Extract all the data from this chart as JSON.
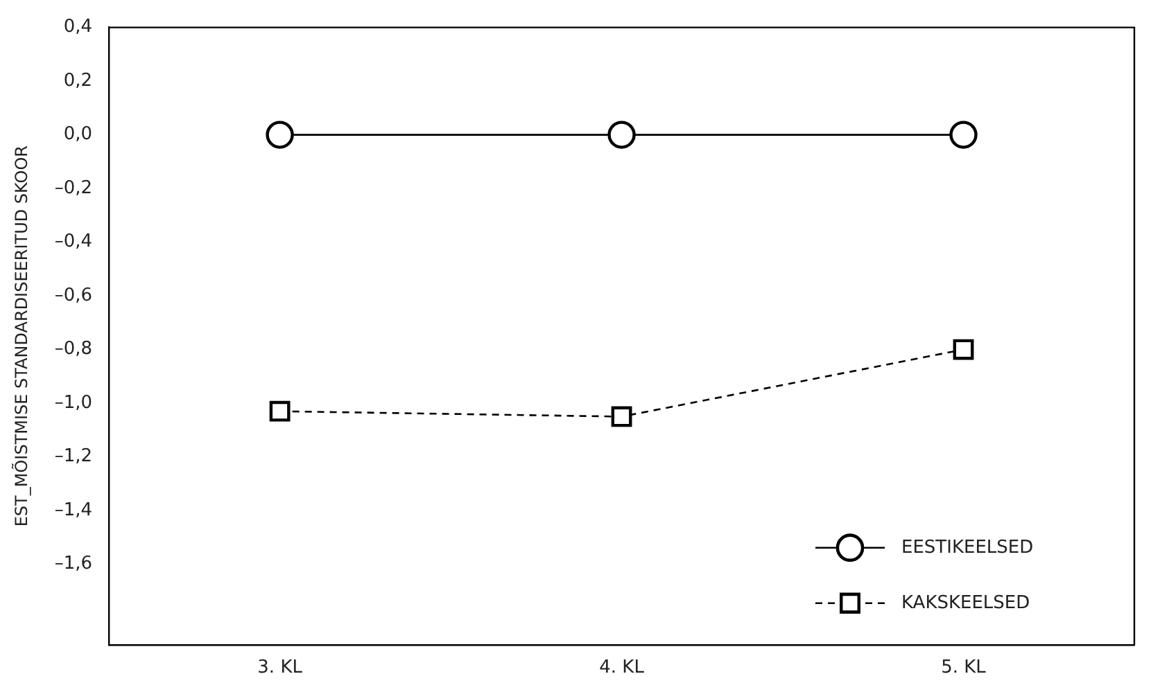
{
  "chart_data": {
    "type": "line",
    "ylabel": "EST_MÕISTMISE STANDARDISEERITUD SKOOR",
    "categories": [
      "3. KL",
      "4. KL",
      "5. KL"
    ],
    "series": [
      {
        "name": "EESTIKEELSED",
        "color": "#000000",
        "values": [
          0.0,
          0.0,
          0.0
        ],
        "marker": "circle",
        "line_style": "solid"
      },
      {
        "name": "KAKSKEELSED",
        "color": "#000000",
        "values": [
          -1.03,
          -1.05,
          -0.8
        ],
        "marker": "square",
        "line_style": "dashed"
      }
    ],
    "ylim": [
      -1.9,
      0.4
    ],
    "yticks": [
      {
        "value": 0.4,
        "label": "0,4"
      },
      {
        "value": 0.2,
        "label": "0,2"
      },
      {
        "value": 0,
        "label": "0,0"
      },
      {
        "value": -0.2,
        "label": "–0,2"
      },
      {
        "value": -0.4,
        "label": "–0,4"
      },
      {
        "value": -0.6,
        "label": "–0,6"
      },
      {
        "value": -0.8,
        "label": "–0,8"
      },
      {
        "value": -1,
        "label": "–1,0"
      },
      {
        "value": -1.2,
        "label": "–1,2"
      },
      {
        "value": -1.4,
        "label": "–1,4"
      },
      {
        "value": -1.6,
        "label": "–1,6"
      }
    ],
    "grid": false,
    "legend": "bottom right"
  }
}
